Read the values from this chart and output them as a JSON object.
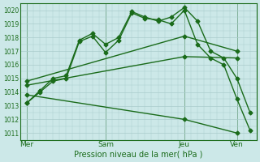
{
  "background_color": "#cce8e8",
  "grid_color": "#aacccc",
  "line_color": "#1a6b1a",
  "title": "Pression niveau de la mer( hPa )",
  "ylabel_ticks": [
    1011,
    1012,
    1013,
    1014,
    1015,
    1016,
    1017,
    1018,
    1019,
    1020
  ],
  "ylim": [
    1010.5,
    1020.5
  ],
  "xtick_labels": [
    "Mer",
    "Sam",
    "Jeu",
    "Ven"
  ],
  "xtick_positions": [
    0,
    12,
    24,
    32
  ],
  "xlim": [
    -1,
    35
  ],
  "series": [
    {
      "x": [
        0,
        2,
        4,
        6,
        8,
        10,
        12,
        14,
        16,
        18,
        20,
        22,
        24,
        26,
        28,
        30,
        32,
        34
      ],
      "y": [
        1013.2,
        1014.1,
        1015.0,
        1015.2,
        1017.8,
        1018.3,
        1017.5,
        1018.0,
        1019.9,
        1019.5,
        1019.2,
        1019.5,
        1020.2,
        1019.2,
        1017.0,
        1016.5,
        1015.0,
        1012.5
      ],
      "marker": "D",
      "markersize": 2.5,
      "linewidth": 1.0
    },
    {
      "x": [
        0,
        2,
        4,
        6,
        8,
        10,
        12,
        14,
        16,
        18,
        20,
        22,
        24,
        26,
        28,
        30,
        32,
        34
      ],
      "y": [
        1013.2,
        1014.0,
        1014.8,
        1015.0,
        1017.7,
        1018.1,
        1016.9,
        1017.8,
        1019.8,
        1019.4,
        1019.3,
        1019.0,
        1020.0,
        1017.5,
        1016.5,
        1016.0,
        1013.5,
        1011.2
      ],
      "marker": "D",
      "markersize": 2.5,
      "linewidth": 1.0
    },
    {
      "x": [
        0,
        24,
        32
      ],
      "y": [
        1014.8,
        1018.1,
        1017.0
      ],
      "marker": "D",
      "markersize": 2.5,
      "linewidth": 1.0
    },
    {
      "x": [
        0,
        24,
        32
      ],
      "y": [
        1014.5,
        1016.6,
        1016.5
      ],
      "marker": "D",
      "markersize": 2.5,
      "linewidth": 1.0
    },
    {
      "x": [
        0,
        24,
        32
      ],
      "y": [
        1013.8,
        1012.0,
        1011.0
      ],
      "marker": "D",
      "markersize": 2.5,
      "linewidth": 1.0
    }
  ]
}
